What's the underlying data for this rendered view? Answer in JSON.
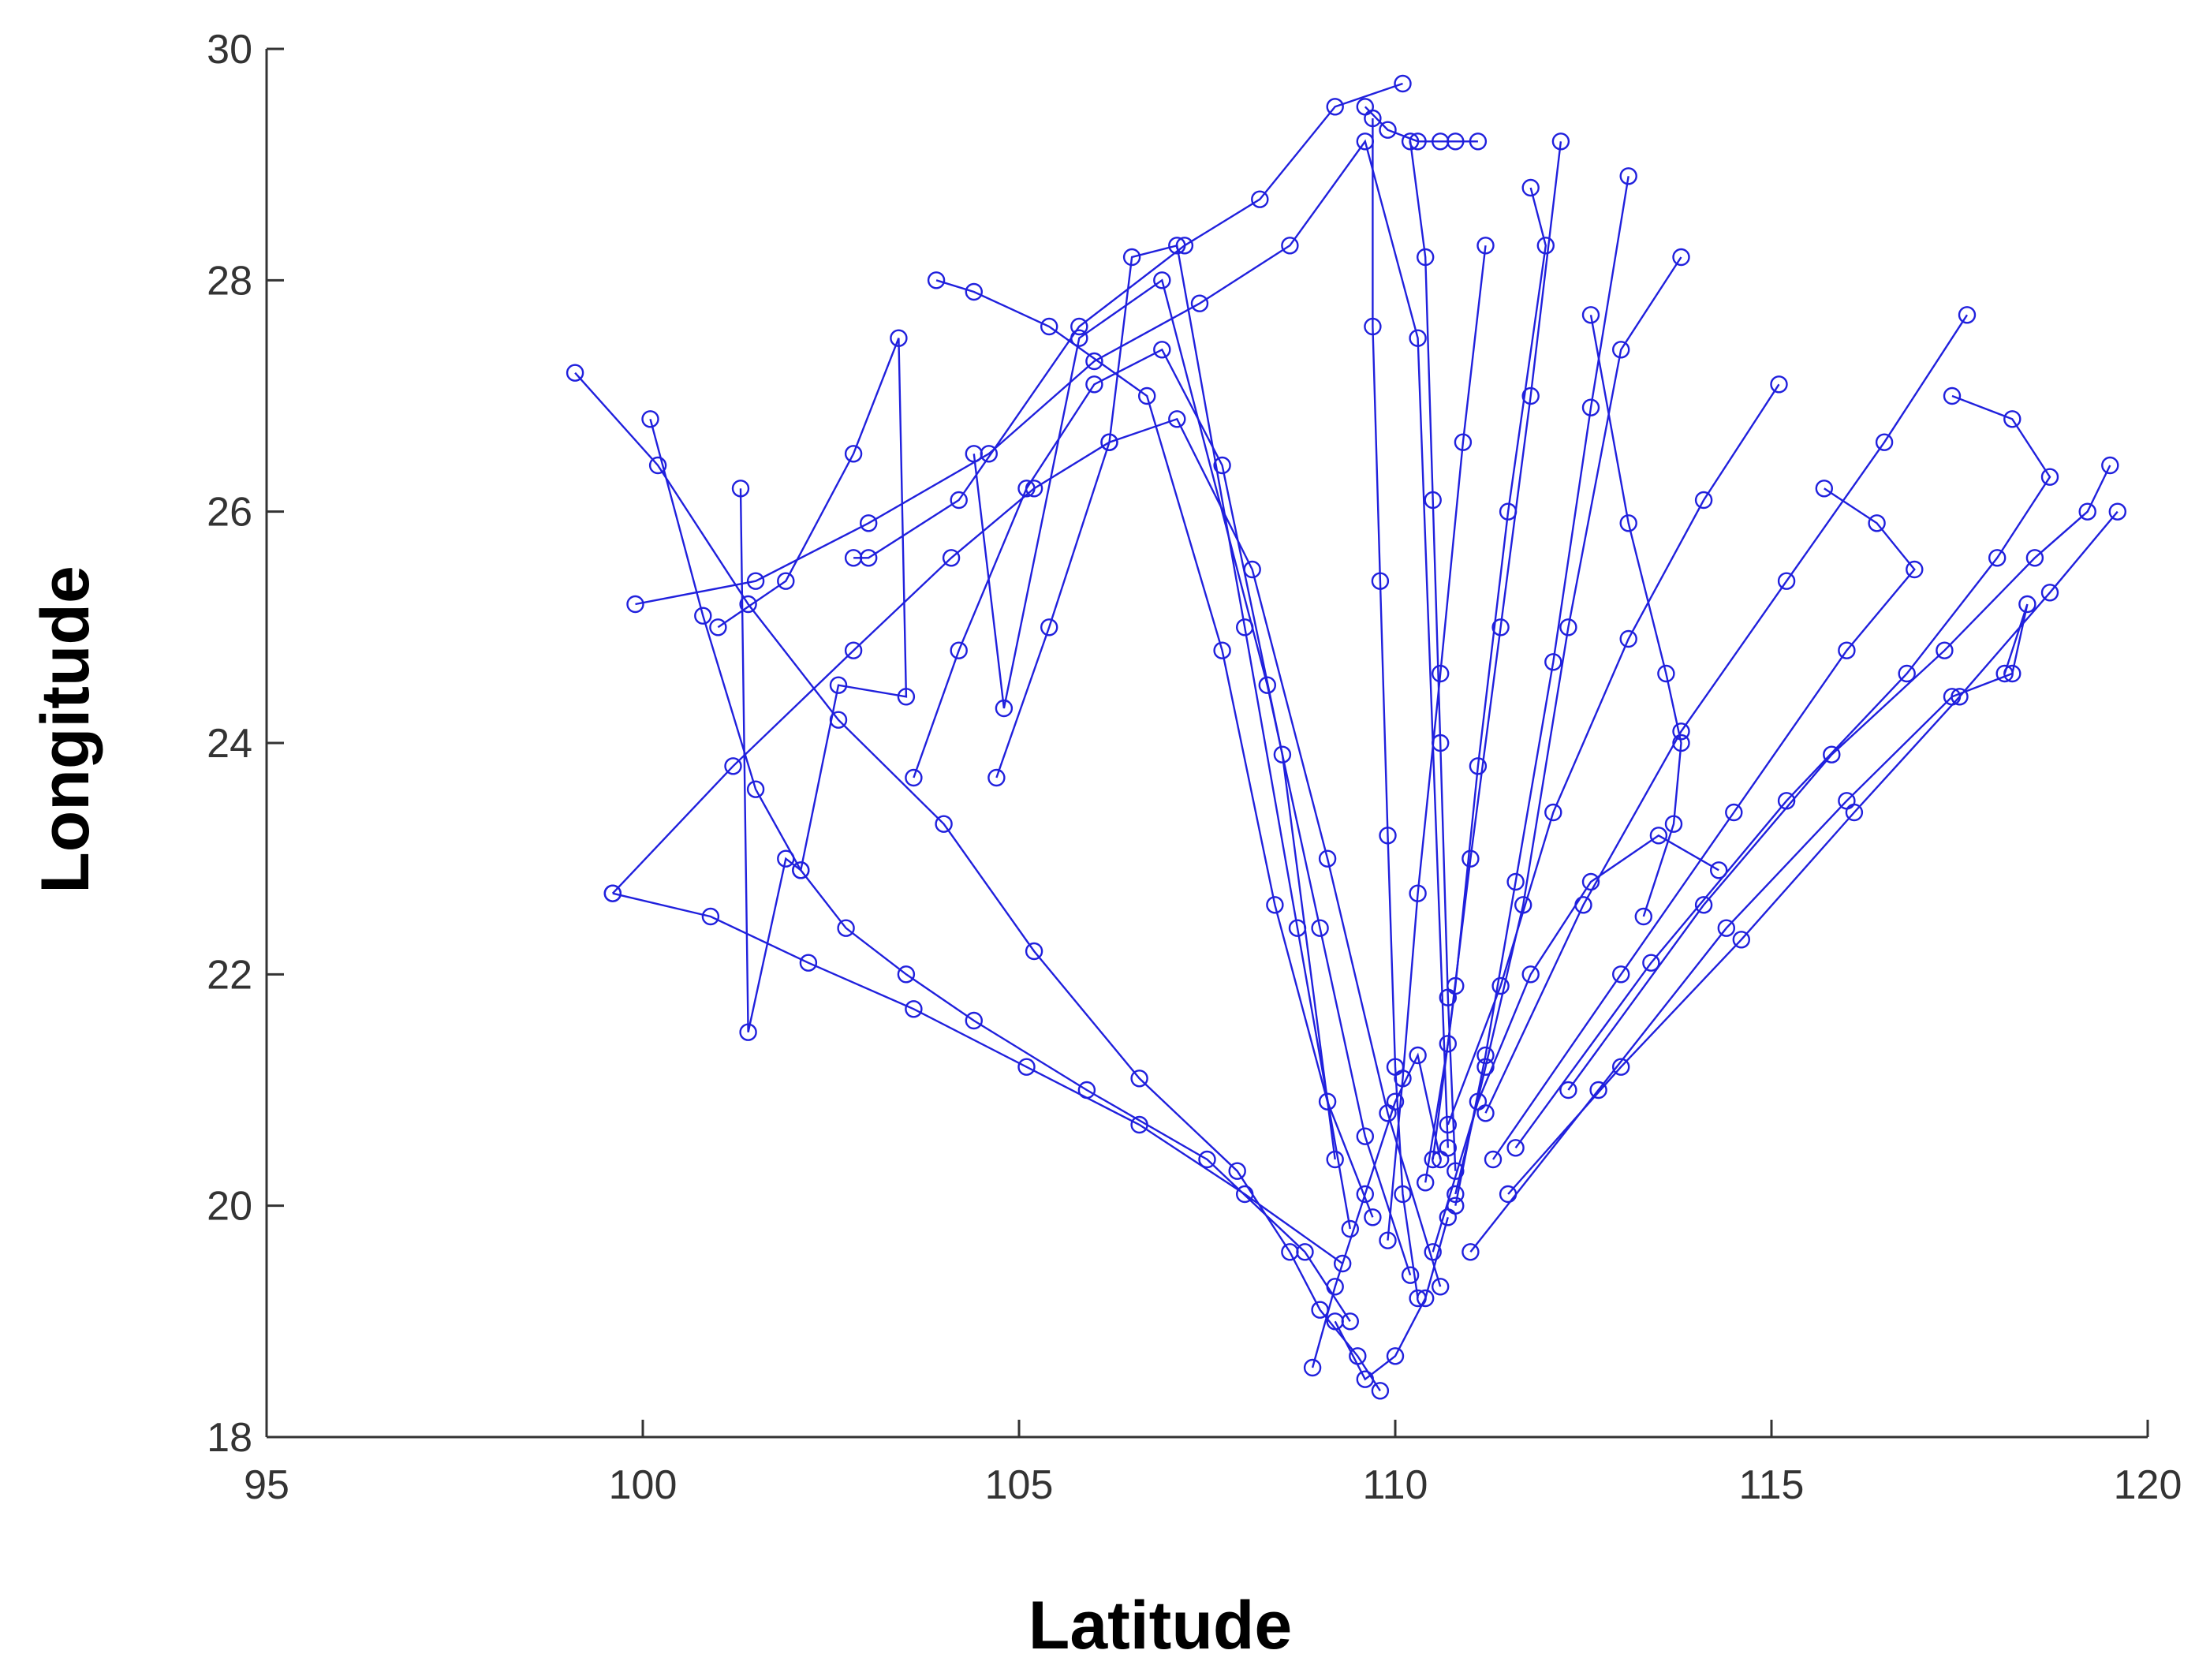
{
  "chart_data": {
    "type": "line",
    "xlabel": "Latitude",
    "ylabel": "Longitude",
    "xlim": [
      95,
      120
    ],
    "ylim": [
      18,
      30
    ],
    "xticks": [
      "95",
      "100",
      "105",
      "110",
      "115",
      "120"
    ],
    "yticks": [
      "18",
      "20",
      "22",
      "24",
      "26",
      "28",
      "30"
    ],
    "grid": false,
    "marker": "circle",
    "colors": {
      "line": "#2020dd",
      "axis": "#333333"
    },
    "series": [
      {
        "x": [
          99.1,
          100.2,
          101.4,
          102.6,
          104.0,
          105.2,
          106.6,
          107.9,
          108.6,
          109.0,
          109.5,
          109.8
        ],
        "y": [
          27.2,
          26.4,
          25.2,
          24.2,
          23.3,
          22.2,
          21.1,
          20.3,
          19.6,
          19.1,
          18.7,
          18.4
        ]
      },
      {
        "x": [
          99.6,
          101.2,
          102.8,
          104.1,
          105.2,
          106.2,
          107.1,
          108.1,
          109.1,
          109.9,
          110.6
        ],
        "y": [
          22.7,
          23.8,
          24.8,
          25.6,
          26.2,
          26.6,
          26.8,
          25.5,
          23.0,
          20.8,
          19.3
        ]
      },
      {
        "x": [
          99.9,
          101.5,
          103.0,
          104.6,
          106.0,
          107.4,
          108.6,
          109.6,
          110.3,
          110.7
        ],
        "y": [
          25.2,
          25.4,
          25.9,
          26.5,
          27.3,
          27.8,
          28.3,
          29.2,
          27.5,
          20.5
        ]
      },
      {
        "x": [
          100.1,
          100.8,
          101.5,
          102.1,
          102.7,
          103.5,
          104.4,
          105.9,
          107.5,
          108.8,
          109.4
        ],
        "y": [
          26.8,
          25.1,
          23.6,
          22.9,
          22.4,
          22.0,
          21.6,
          21.0,
          20.4,
          19.6,
          19.0
        ]
      },
      {
        "x": [
          101.3,
          101.4,
          101.9,
          102.1,
          102.6,
          103.5,
          103.4,
          102.8,
          101.9,
          101.0
        ],
        "y": [
          26.2,
          21.5,
          23.0,
          22.9,
          24.5,
          24.4,
          27.5,
          26.5,
          25.4,
          25.0
        ]
      },
      {
        "x": [
          102.8,
          103.0,
          104.2,
          105.8,
          107.2,
          108.2,
          109.2,
          110.1
        ],
        "y": [
          25.6,
          25.6,
          26.1,
          27.6,
          28.3,
          28.7,
          29.5,
          29.7
        ]
      },
      {
        "x": [
          104.4,
          104.8,
          105.8,
          106.9,
          108.3,
          109.0,
          109.6,
          110.2
        ],
        "y": [
          26.5,
          24.3,
          27.5,
          28.0,
          24.5,
          22.4,
          20.6,
          19.4
        ]
      },
      {
        "x": [
          103.9,
          104.4,
          105.4,
          106.7,
          107.7,
          108.4,
          109.1,
          109.7
        ],
        "y": [
          28.0,
          27.9,
          27.6,
          27.0,
          24.8,
          22.6,
          20.9,
          19.9
        ]
      },
      {
        "x": [
          104.7,
          105.4,
          106.2,
          106.5,
          107.1,
          108.0,
          108.7,
          109.4
        ],
        "y": [
          23.7,
          25.0,
          26.6,
          28.2,
          28.3,
          25.0,
          22.4,
          19.8
        ]
      },
      {
        "x": [
          103.6,
          104.2,
          105.1,
          106.0,
          106.9,
          107.7,
          108.5,
          109.2
        ],
        "y": [
          23.7,
          24.8,
          26.2,
          27.1,
          27.4,
          26.4,
          23.9,
          20.4
        ]
      },
      {
        "x": [
          109.7,
          109.7,
          109.8,
          109.9,
          110.0,
          110.1,
          110.3
        ],
        "y": [
          29.4,
          27.6,
          25.4,
          23.2,
          21.2,
          20.1,
          19.2
        ]
      },
      {
        "x": [
          109.6,
          109.9,
          110.3,
          110.6,
          110.8,
          111.1
        ],
        "y": [
          29.5,
          29.3,
          29.2,
          29.2,
          29.2,
          29.2
        ]
      },
      {
        "x": [
          110.2,
          110.4,
          110.5,
          110.6,
          110.7,
          110.8
        ],
        "y": [
          29.2,
          28.2,
          26.1,
          24.0,
          21.8,
          20.3
        ]
      },
      {
        "x": [
          111.2,
          110.9,
          110.6,
          110.3,
          110.1,
          109.9
        ],
        "y": [
          28.3,
          26.6,
          24.6,
          22.7,
          21.1,
          19.7
        ]
      },
      {
        "x": [
          112.2,
          111.8,
          111.4,
          111.0,
          110.7,
          110.4
        ],
        "y": [
          29.2,
          27.0,
          25.0,
          23.0,
          21.4,
          20.2
        ]
      },
      {
        "x": [
          111.8,
          112.0,
          111.5,
          111.1,
          110.8,
          110.5
        ],
        "y": [
          28.8,
          28.3,
          26.0,
          23.8,
          21.9,
          20.4
        ]
      },
      {
        "x": [
          113.1,
          112.6,
          112.1,
          111.6,
          111.2,
          110.8
        ],
        "y": [
          28.9,
          26.9,
          24.7,
          22.8,
          21.3,
          20.0
        ]
      },
      {
        "x": [
          113.8,
          113.0,
          112.3,
          111.7,
          111.2,
          110.8
        ],
        "y": [
          28.2,
          27.4,
          25.0,
          22.6,
          21.2,
          20.1
        ]
      },
      {
        "x": [
          112.6,
          113.1,
          113.6,
          113.8,
          113.7,
          113.3
        ],
        "y": [
          27.7,
          25.9,
          24.6,
          24.0,
          23.3,
          22.5
        ]
      },
      {
        "x": [
          115.1,
          114.1,
          113.1,
          112.1,
          111.4,
          110.7
        ],
        "y": [
          27.1,
          26.1,
          24.9,
          23.4,
          21.9,
          20.7
        ]
      },
      {
        "x": [
          117.6,
          116.5,
          115.2,
          113.8,
          112.5,
          111.2
        ],
        "y": [
          27.7,
          26.6,
          25.4,
          24.1,
          22.6,
          20.8
        ]
      },
      {
        "x": [
          117.4,
          118.2,
          118.7,
          118.0,
          116.8,
          115.2,
          113.4,
          111.6
        ],
        "y": [
          27.0,
          26.8,
          26.3,
          25.6,
          24.6,
          23.5,
          22.1,
          20.5
        ]
      },
      {
        "x": [
          119.5,
          119.2,
          118.5,
          117.3,
          115.8,
          114.1,
          112.3
        ],
        "y": [
          26.4,
          26.0,
          25.6,
          24.8,
          23.9,
          22.6,
          21.0
        ]
      },
      {
        "x": [
          119.6,
          118.7,
          117.5,
          116.1,
          114.6,
          113.0,
          111.5
        ],
        "y": [
          26.0,
          25.3,
          24.4,
          23.4,
          22.3,
          21.2,
          20.1
        ]
      },
      {
        "x": [
          115.7,
          116.4,
          116.9,
          116.0,
          114.5,
          113.0,
          111.3
        ],
        "y": [
          26.2,
          25.9,
          25.5,
          24.8,
          23.4,
          22.0,
          20.4
        ]
      },
      {
        "x": [
          118.1,
          118.4,
          118.2,
          117.4,
          116.0,
          114.4,
          112.7,
          111.0
        ],
        "y": [
          24.6,
          25.2,
          24.6,
          24.4,
          23.5,
          22.4,
          21.0,
          19.6
        ]
      },
      {
        "x": [
          114.3,
          113.5,
          112.6,
          111.8,
          111.1,
          110.5
        ],
        "y": [
          22.9,
          23.2,
          22.8,
          22.0,
          20.9,
          19.6
        ]
      },
      {
        "x": [
          109.2,
          109.6,
          110.0,
          110.4,
          110.7
        ],
        "y": [
          19.0,
          18.5,
          18.7,
          19.2,
          19.9
        ]
      },
      {
        "x": [
          108.9,
          109.2,
          109.6,
          110.0,
          110.3,
          110.6
        ],
        "y": [
          18.6,
          19.3,
          20.1,
          20.9,
          21.3,
          20.4
        ]
      },
      {
        "x": [
          99.6,
          100.9,
          102.2,
          103.6,
          105.1,
          106.6,
          108.0,
          109.3
        ],
        "y": [
          22.7,
          22.5,
          22.1,
          21.7,
          21.2,
          20.7,
          20.1,
          19.5
        ]
      }
    ]
  }
}
